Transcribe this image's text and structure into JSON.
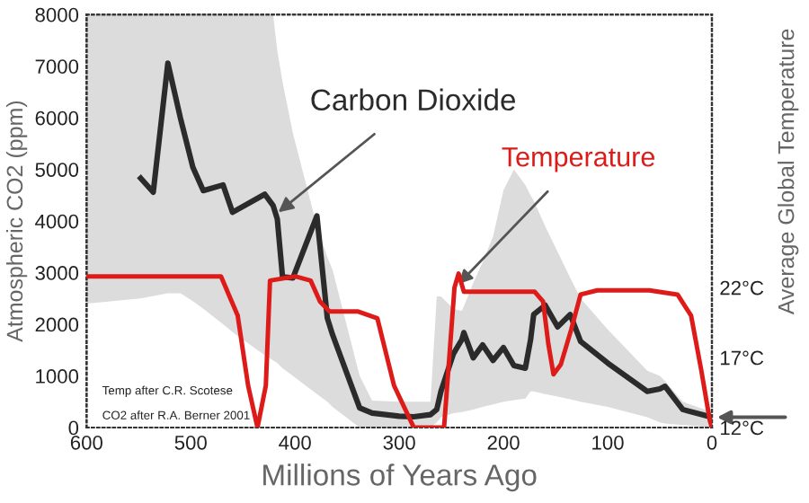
{
  "chart_data": {
    "type": "line",
    "xlabel": "Millions of Years Ago",
    "ylabel": "Atmospheric CO2 (ppm)",
    "y2label": "Average Global Temperature",
    "xlim": [
      600,
      0
    ],
    "xticks": [
      600,
      500,
      400,
      300,
      200,
      100,
      0
    ],
    "ylim": [
      0,
      8000
    ],
    "yticks": [
      0,
      1000,
      2000,
      3000,
      4000,
      5000,
      6000,
      7000,
      8000
    ],
    "y2lim": [
      12,
      41.5
    ],
    "y2ticks": [
      {
        "value": 12,
        "label": "12°C"
      },
      {
        "value": 17,
        "label": "17°C"
      },
      {
        "value": 22,
        "label": "22°C"
      }
    ],
    "series": [
      {
        "color": "#2b2b2b",
        "x": [
          600,
          548,
          536,
          522,
          510,
          498,
          488,
          469,
          460,
          429,
          421,
          417,
          412,
          402,
          379,
          369,
          364,
          338,
          326,
          300,
          286,
          270,
          264,
          260,
          248,
          240,
          238,
          229,
          220,
          210,
          200,
          190,
          179,
          174,
          171,
          160,
          148,
          136,
          126,
          100,
          62,
          50,
          45,
          28,
          0
        ],
        "values": [
          null,
          4830,
          4560,
          7060,
          6000,
          5040,
          4590,
          4700,
          4170,
          4520,
          4300,
          4040,
          2920,
          2900,
          4100,
          2120,
          1800,
          380,
          280,
          220,
          210,
          250,
          350,
          700,
          1430,
          1700,
          1840,
          1350,
          1600,
          1300,
          1550,
          1200,
          1150,
          1700,
          2190,
          2370,
          1950,
          2190,
          1670,
          1250,
          700,
          750,
          800,
          350,
          200
        ],
        "upper": [
          8000,
          8000,
          8000,
          8000,
          8000,
          8000,
          8000,
          8000,
          8000,
          8000,
          8000,
          7300,
          6700,
          5700,
          3900,
          3300,
          3060,
          1000,
          520,
          500,
          500,
          500,
          2540,
          2540,
          2300,
          2260,
          2350,
          2800,
          3200,
          3700,
          4600,
          5000,
          4700,
          4500,
          4400,
          3900,
          3400,
          2900,
          2500,
          1900,
          1100,
          1000,
          900,
          500,
          300
        ],
        "lower": [
          2400,
          2500,
          2550,
          2600,
          2600,
          2450,
          2300,
          2000,
          1850,
          1400,
          1300,
          1250,
          1150,
          1000,
          650,
          500,
          400,
          0,
          0,
          0,
          0,
          0,
          100,
          200,
          280,
          300,
          310,
          350,
          400,
          450,
          500,
          530,
          560,
          700,
          700,
          650,
          600,
          550,
          500,
          400,
          200,
          100,
          80,
          50,
          0
        ]
      },
      {
        "color": "#dd1c1a",
        "axis": "y2",
        "x": [
          600,
          471,
          455,
          445,
          436,
          428,
          424,
          400,
          385,
          376,
          367,
          340,
          321,
          305,
          286,
          270,
          257,
          252,
          247,
          243,
          238,
          200,
          170,
          162,
          157,
          152,
          145,
          135,
          126,
          110,
          60,
          33,
          20,
          10,
          2,
          0
        ],
        "values": [
          22.8,
          22.8,
          20,
          15,
          12,
          15,
          22.5,
          22.8,
          22.5,
          21,
          20.3,
          20.3,
          19.8,
          15,
          12,
          12,
          12,
          17,
          22,
          23,
          21.7,
          21.7,
          21.7,
          21,
          18,
          15.8,
          16.5,
          19,
          21.5,
          21.8,
          21.8,
          21.5,
          20,
          16,
          12.5,
          12
        ]
      }
    ],
    "annotations": [
      {
        "text": "Carbon Dioxide",
        "x": 416,
        "y": 4170
      },
      {
        "text": "Temperature",
        "x": 243,
        "y": 2780
      },
      "Temp after C.R. Scotese",
      "CO2 after R.A. Berner 2001"
    ],
    "grid": false,
    "legend": false
  }
}
